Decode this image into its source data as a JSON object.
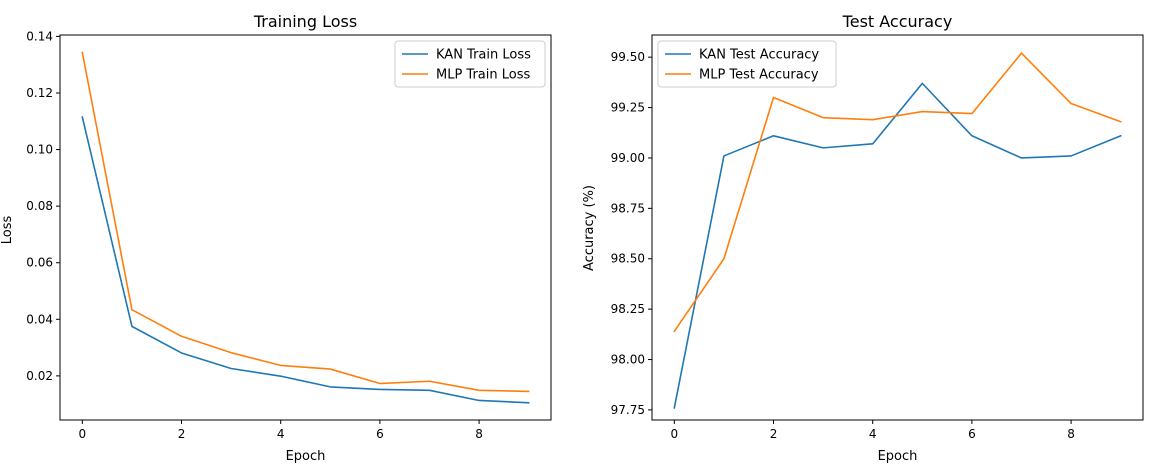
{
  "chart_data": [
    {
      "type": "line",
      "title": "Training Loss",
      "xlabel": "Epoch",
      "ylabel": "Loss",
      "xlim": [
        -0.45,
        9.45
      ],
      "ylim": [
        0.0044,
        0.1405
      ],
      "xticks": [
        0,
        2,
        4,
        6,
        8
      ],
      "xtick_labels": [
        "0",
        "2",
        "4",
        "6",
        "8"
      ],
      "yticks": [
        0.02,
        0.04,
        0.06,
        0.08,
        0.1,
        0.12,
        0.14
      ],
      "ytick_labels": [
        "0.02",
        "0.04",
        "0.06",
        "0.08",
        "0.10",
        "0.12",
        "0.14"
      ],
      "grid": false,
      "legend_position": "top-right",
      "x": [
        0,
        1,
        2,
        3,
        4,
        5,
        6,
        7,
        8,
        9
      ],
      "series": [
        {
          "name": "KAN Train Loss",
          "color": "#1f77b4",
          "values": [
            0.1115,
            0.0375,
            0.0281,
            0.0226,
            0.0199,
            0.0161,
            0.0152,
            0.0149,
            0.0113,
            0.0105
          ]
        },
        {
          "name": "MLP Train Loss",
          "color": "#ff7f0e",
          "values": [
            0.1343,
            0.0434,
            0.034,
            0.0282,
            0.0237,
            0.0224,
            0.0173,
            0.0181,
            0.0149,
            0.0145
          ]
        }
      ]
    },
    {
      "type": "line",
      "title": "Test Accuracy",
      "xlabel": "Epoch",
      "ylabel": "Accuracy (%)",
      "xlim": [
        -0.45,
        9.45
      ],
      "ylim": [
        97.7,
        99.61
      ],
      "xticks": [
        0,
        2,
        4,
        6,
        8
      ],
      "xtick_labels": [
        "0",
        "2",
        "4",
        "6",
        "8"
      ],
      "yticks": [
        97.75,
        98.0,
        98.25,
        98.5,
        98.75,
        99.0,
        99.25,
        99.5
      ],
      "ytick_labels": [
        "97.75",
        "98.00",
        "98.25",
        "98.50",
        "98.75",
        "99.00",
        "99.25",
        "99.50"
      ],
      "grid": false,
      "legend_position": "top-left",
      "x": [
        0,
        1,
        2,
        3,
        4,
        5,
        6,
        7,
        8,
        9
      ],
      "series": [
        {
          "name": "KAN Test Accuracy",
          "color": "#1f77b4",
          "values": [
            97.76,
            99.01,
            99.11,
            99.05,
            99.07,
            99.37,
            99.11,
            99.0,
            99.01,
            99.11
          ]
        },
        {
          "name": "MLP Test Accuracy",
          "color": "#ff7f0e",
          "values": [
            98.14,
            98.5,
            99.3,
            99.2,
            99.19,
            99.23,
            99.22,
            99.52,
            99.27,
            99.18
          ]
        }
      ]
    }
  ]
}
